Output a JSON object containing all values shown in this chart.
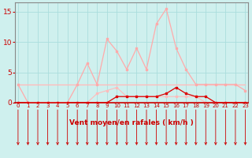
{
  "x": [
    0,
    1,
    2,
    3,
    4,
    5,
    6,
    7,
    8,
    9,
    10,
    11,
    12,
    13,
    14,
    15,
    16,
    17,
    18,
    19,
    20,
    21,
    22,
    23
  ],
  "rafales": [
    3,
    0,
    0,
    0,
    0,
    0,
    3,
    6.5,
    3,
    10.5,
    8.5,
    5.5,
    9,
    5.5,
    13,
    15.5,
    9,
    5.5,
    3,
    3,
    3,
    3,
    3,
    2
  ],
  "vent_moyen": [
    0,
    0,
    0,
    0,
    0,
    0,
    0,
    0,
    0,
    0,
    1,
    1,
    1,
    1,
    1,
    1.5,
    2.5,
    1.5,
    1,
    1,
    0,
    0,
    0,
    0
  ],
  "line_flat": [
    3,
    3,
    3,
    3,
    3,
    3,
    3,
    3,
    3,
    3,
    3,
    3,
    3,
    3,
    3,
    3,
    3,
    3,
    3,
    3,
    3,
    3,
    3,
    3
  ],
  "line_mid": [
    0,
    0,
    0,
    0,
    0,
    0,
    0,
    0,
    1.5,
    2,
    2.5,
    1,
    1,
    1,
    1,
    1,
    1,
    1,
    1,
    0,
    0,
    0,
    0,
    0
  ],
  "bg_color": "#cff0ee",
  "grid_color": "#aadddd",
  "color_rafales": "#ffaaaa",
  "color_vent": "#dd0000",
  "color_flat": "#ffbbbb",
  "color_mid": "#ffbbbb",
  "xlabel": "Vent moyen/en rafales ( km/h )",
  "yticks": [
    0,
    5,
    10,
    15
  ],
  "ylim": [
    0,
    16.5
  ],
  "xlim": [
    -0.3,
    23.3
  ],
  "spine_color": "#888888",
  "bottom_line_color": "#cc0000",
  "tick_color": "#cc0000",
  "label_color": "#cc0000"
}
